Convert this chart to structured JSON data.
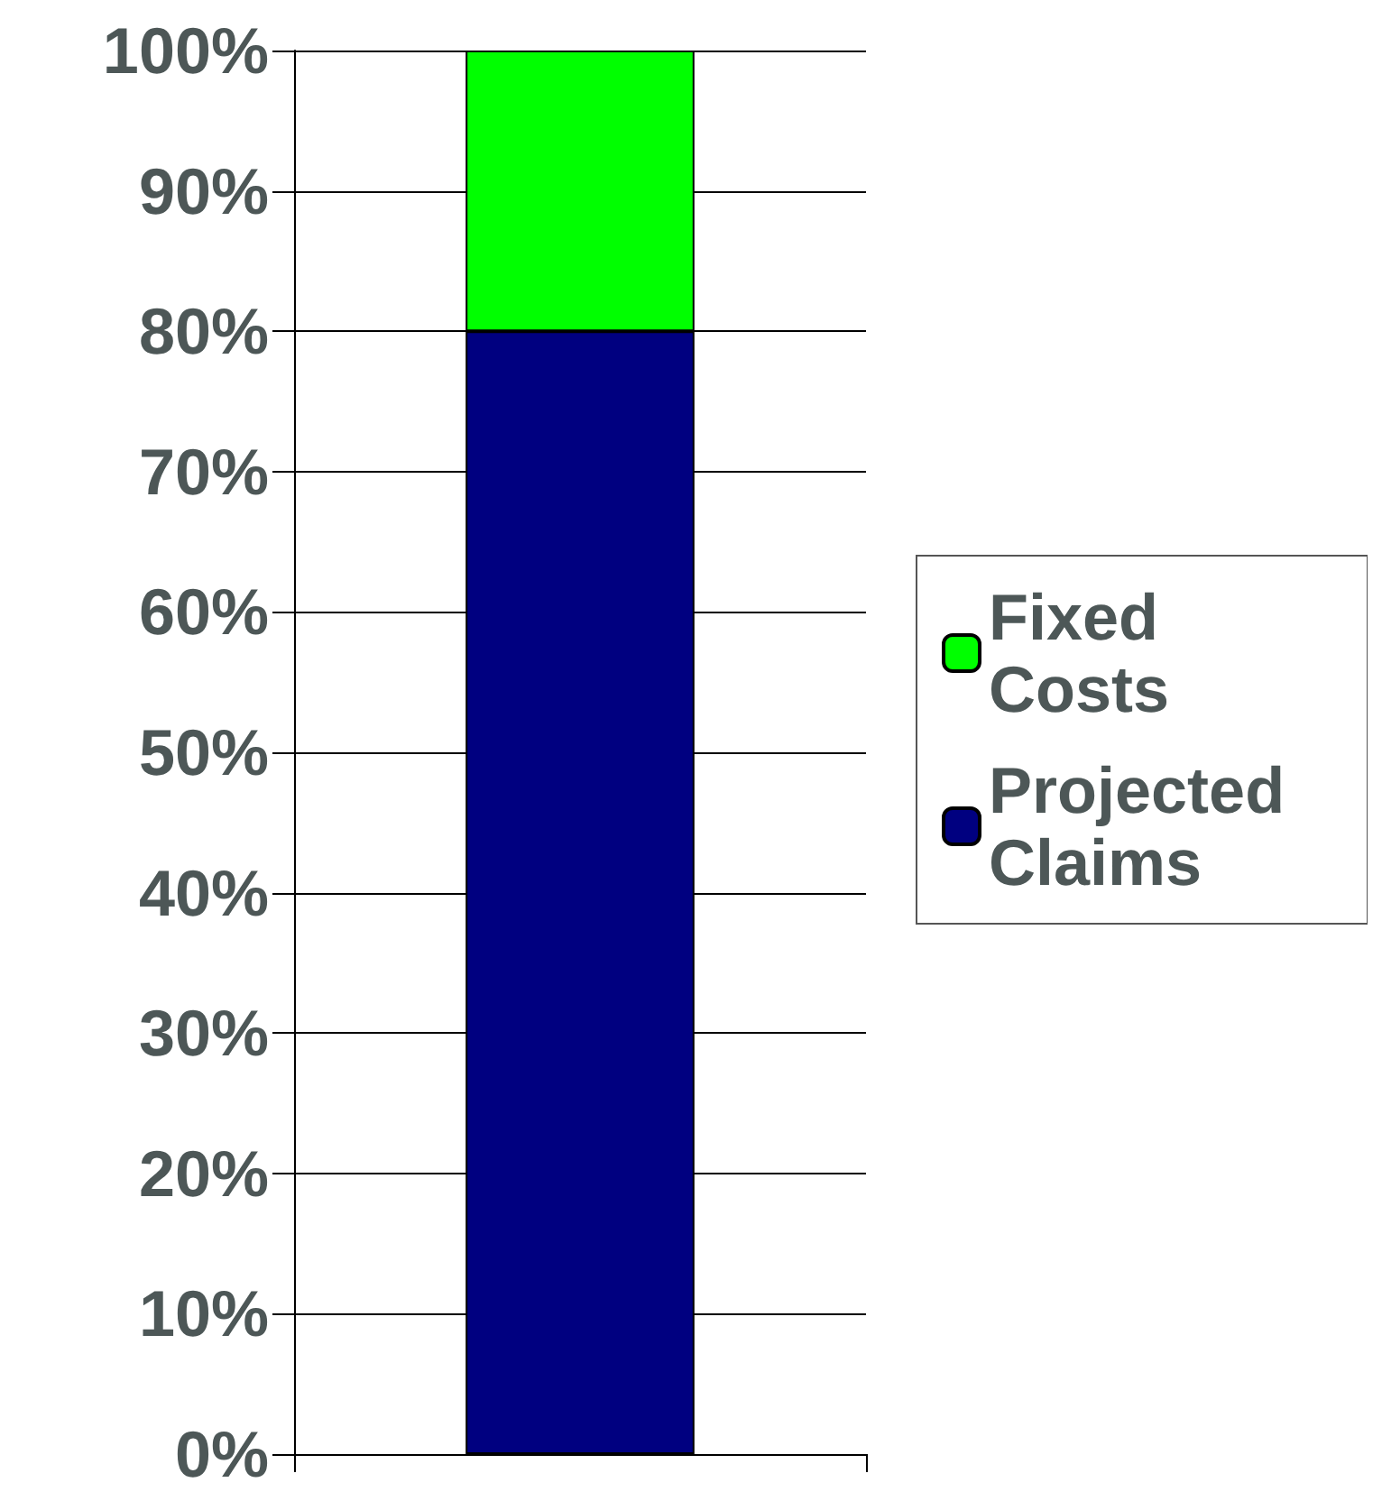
{
  "chart_data": {
    "type": "bar",
    "stacked": true,
    "categories": [
      null
    ],
    "series": [
      {
        "name": "Projected Claims",
        "color": "#000080",
        "values": [
          80
        ]
      },
      {
        "name": "Fixed Costs",
        "color": "#00ff00",
        "values": [
          20
        ]
      }
    ],
    "ylim": [
      0,
      100
    ],
    "yticks": [
      {
        "value": 0,
        "label": "0%"
      },
      {
        "value": 10,
        "label": "10%"
      },
      {
        "value": 20,
        "label": "20%"
      },
      {
        "value": 30,
        "label": "30%"
      },
      {
        "value": 40,
        "label": "40%"
      },
      {
        "value": 50,
        "label": "50%"
      },
      {
        "value": 60,
        "label": "60%"
      },
      {
        "value": 70,
        "label": "70%"
      },
      {
        "value": 80,
        "label": "80%"
      },
      {
        "value": 90,
        "label": "90%"
      },
      {
        "value": 100,
        "label": "100%"
      }
    ],
    "grid": "y",
    "legend": "right"
  }
}
